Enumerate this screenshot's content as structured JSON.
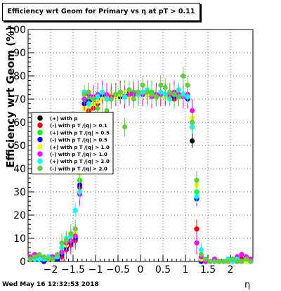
{
  "title": "Efficiency wrt Geom for Primary vs   η at pT > 0.11",
  "timestamp": "Wed May 16 12:32:53 2018",
  "chart_data": {
    "type": "scatter",
    "title": "Efficiency wrt Geom for Primary vs   η at pT > 0.11",
    "xlabel": "η",
    "ylabel": "Efficiency wrt Geom (%)",
    "xlim": [
      -2.5,
      2.5
    ],
    "ylim": [
      0,
      100
    ],
    "xticks": [
      -2,
      -1.5,
      -1,
      -0.5,
      0,
      0.5,
      1,
      1.5,
      2
    ],
    "xtick_labels": [
      "−2",
      "−1.5",
      "−1",
      "−0.5",
      "0",
      "0.5",
      "1",
      "1.5",
      "2"
    ],
    "yticks": [
      0,
      10,
      20,
      30,
      40,
      50,
      60,
      70,
      80,
      90,
      100
    ],
    "grid": true,
    "legend_position": "left",
    "x": [
      -2.45,
      -2.35,
      -2.25,
      -2.15,
      -2.05,
      -1.95,
      -1.85,
      -1.75,
      -1.65,
      -1.55,
      -1.45,
      -1.35,
      -1.25,
      -1.15,
      -1.05,
      -0.95,
      -0.85,
      -0.75,
      -0.65,
      -0.55,
      -0.45,
      -0.35,
      -0.25,
      -0.15,
      -0.05,
      0.05,
      0.15,
      0.25,
      0.35,
      0.45,
      0.55,
      0.65,
      0.75,
      0.85,
      0.95,
      1.05,
      1.15,
      1.25,
      1.35,
      1.45,
      1.55,
      1.65,
      1.75,
      1.85,
      1.95,
      2.05,
      2.15,
      2.25,
      2.35,
      2.45
    ],
    "series": [
      {
        "name": "(+) with p",
        "color": "#000000",
        "values": [
          2,
          1,
          1,
          0,
          1,
          1,
          1,
          3,
          6,
          8,
          10,
          30,
          68,
          70,
          69,
          70,
          70,
          71,
          71,
          72,
          71,
          72,
          73,
          72,
          72,
          73,
          72,
          72,
          71,
          72,
          72,
          71,
          70,
          72,
          72,
          70,
          52,
          14,
          0,
          0,
          0,
          0,
          0,
          0,
          0,
          0,
          1,
          0,
          1,
          0
        ]
      },
      {
        "name": "(-) with p T /|q| > 0.1",
        "color": "#ff0000",
        "values": [
          1,
          1,
          1,
          0,
          1,
          1,
          1,
          2,
          5,
          7,
          9,
          32,
          68,
          65,
          66,
          68,
          70,
          70,
          72,
          71,
          72,
          71,
          71,
          72,
          72,
          72,
          73,
          72,
          71,
          71,
          72,
          71,
          70,
          72,
          71,
          70,
          60,
          14,
          0,
          0,
          0,
          0,
          0,
          0,
          1,
          0,
          0,
          1,
          0,
          0
        ]
      },
      {
        "name": "(+) with p T /|q| > 0.5",
        "color": "#00ff00",
        "values": [
          1,
          1,
          1,
          0,
          1,
          1,
          2,
          3,
          7,
          9,
          10,
          35,
          70,
          70,
          70,
          70,
          72,
          71,
          72,
          72,
          73,
          73,
          72,
          73,
          72,
          72,
          72,
          73,
          72,
          72,
          72,
          72,
          71,
          72,
          72,
          72,
          60,
          30,
          1,
          0,
          0,
          0,
          0,
          0,
          0,
          0,
          1,
          0,
          1,
          0
        ]
      },
      {
        "name": "(-) with p T /|q| > 0.5",
        "color": "#0000ff",
        "values": [
          1,
          2,
          1,
          0,
          1,
          1,
          1,
          3,
          6,
          8,
          10,
          33,
          68,
          69,
          70,
          70,
          71,
          71,
          72,
          72,
          72,
          72,
          72,
          72,
          73,
          73,
          72,
          72,
          72,
          72,
          71,
          72,
          71,
          71,
          72,
          70,
          58,
          27,
          0,
          0,
          0,
          0,
          0,
          0,
          0,
          0,
          0,
          0,
          0,
          1
        ]
      },
      {
        "name": "(+) with p T /|q| > 1.0",
        "color": "#ffff00",
        "values": [
          2,
          2,
          3,
          1,
          1,
          1,
          2,
          4,
          7,
          10,
          12,
          38,
          66,
          67,
          68,
          69,
          70,
          71,
          72,
          71,
          72,
          73,
          71,
          72,
          72,
          73,
          72,
          72,
          72,
          71,
          71,
          72,
          72,
          71,
          72,
          71,
          62,
          33,
          1,
          0,
          0,
          0,
          0,
          0,
          0,
          0,
          1,
          0,
          0,
          1
        ]
      },
      {
        "name": "(-) with p T /|q| > 1.0",
        "color": "#ff00ff",
        "values": [
          2,
          3,
          2,
          1,
          1,
          2,
          2,
          4,
          8,
          9,
          11,
          29,
          70,
          72,
          71,
          72,
          73,
          72,
          71,
          72,
          73,
          71,
          72,
          72,
          73,
          72,
          73,
          71,
          72,
          72,
          72,
          72,
          73,
          72,
          71,
          72,
          65,
          8,
          2,
          0,
          0,
          1,
          0,
          0,
          1,
          1,
          2,
          3,
          2,
          1
        ]
      },
      {
        "name": "(+) with p T /|q| > 2.0",
        "color": "#00ffff",
        "values": [
          1,
          1,
          1,
          1,
          2,
          1,
          2,
          6,
          10,
          11,
          22,
          30,
          73,
          68,
          70,
          71,
          73,
          70,
          60,
          72,
          73,
          71,
          74,
          70,
          72,
          73,
          74,
          72,
          71,
          73,
          72,
          70,
          72,
          74,
          72,
          71,
          58,
          28,
          5,
          1,
          0,
          0,
          0,
          0,
          1,
          0,
          1,
          0,
          1,
          0
        ]
      },
      {
        "name": "(-) with p T /|q| > 2.0",
        "color": "#66cc44",
        "values": [
          1,
          2,
          3,
          2,
          1,
          1,
          3,
          8,
          9,
          12,
          14,
          40,
          72,
          73,
          70,
          66,
          62,
          65,
          70,
          72,
          73,
          58,
          74,
          70,
          73,
          76,
          73,
          72,
          71,
          76,
          75,
          73,
          72,
          71,
          80,
          76,
          60,
          35,
          3,
          1,
          0,
          0,
          0,
          0,
          0,
          1,
          0,
          0,
          1,
          0
        ]
      }
    ]
  }
}
